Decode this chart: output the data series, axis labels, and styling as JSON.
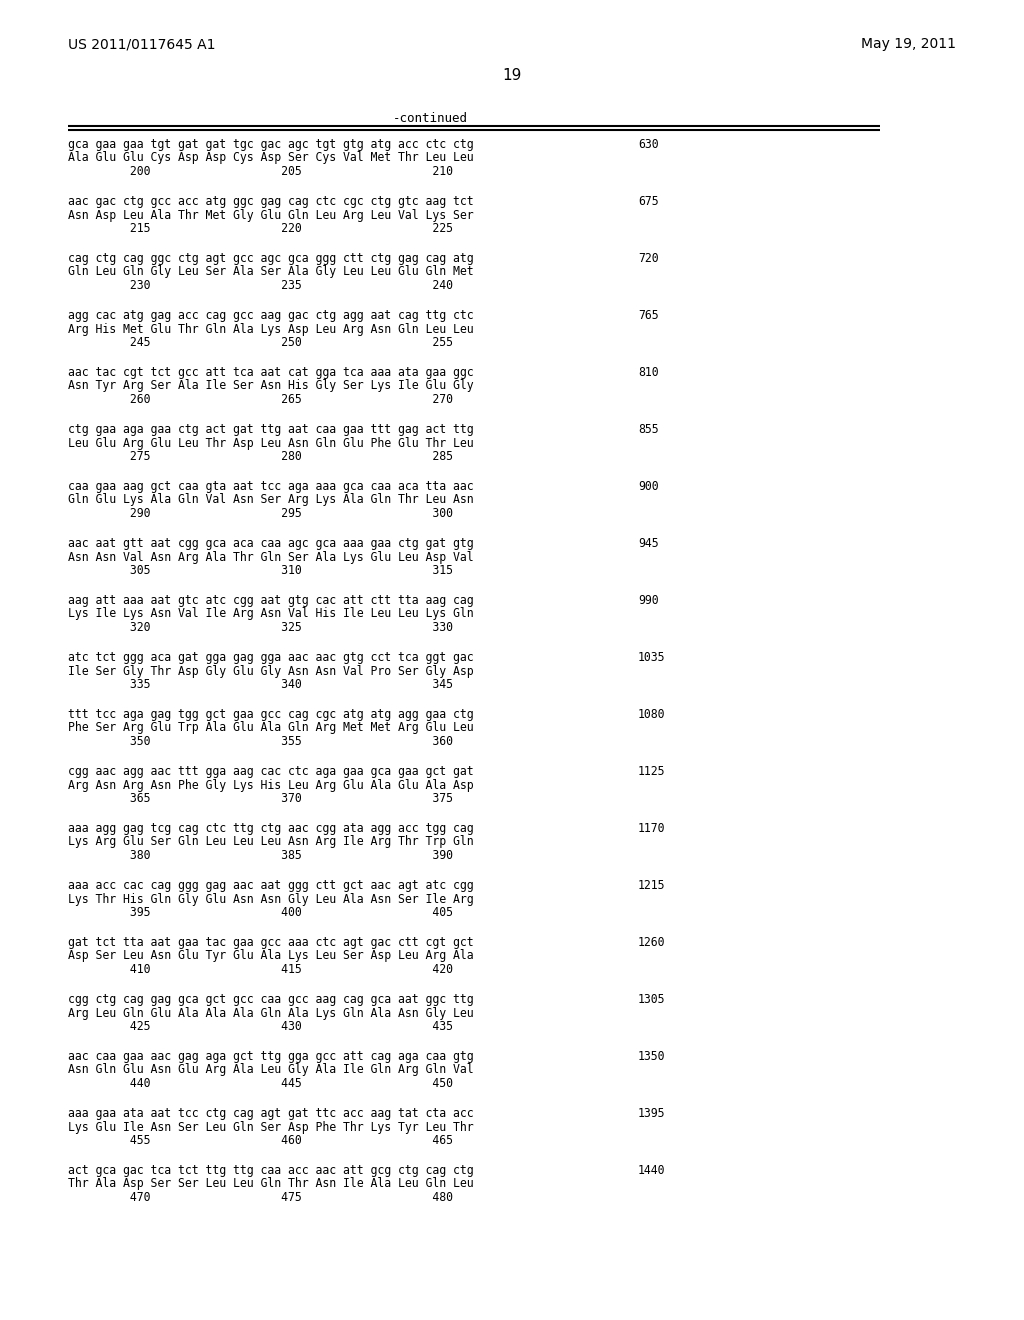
{
  "header_left": "US 2011/0117645 A1",
  "header_right": "May 19, 2011",
  "page_number": "19",
  "continued_label": "-continued",
  "background_color": "#ffffff",
  "text_color": "#000000",
  "sequences": [
    {
      "dna": "gca gaa gaa tgt gat gat tgc gac agc tgt gtg atg acc ctc ctg",
      "aa": "Ala Glu Glu Cys Asp Asp Cys Asp Ser Cys Val Met Thr Leu Leu",
      "nums": "         200                   205                   210",
      "num_right": "630"
    },
    {
      "dna": "aac gac ctg gcc acc atg ggc gag cag ctc cgc ctg gtc aag tct",
      "aa": "Asn Asp Leu Ala Thr Met Gly Glu Gln Leu Arg Leu Val Lys Ser",
      "nums": "         215                   220                   225",
      "num_right": "675"
    },
    {
      "dna": "cag ctg cag ggc ctg agt gcc agc gca ggg ctt ctg gag cag atg",
      "aa": "Gln Leu Gln Gly Leu Ser Ala Ser Ala Gly Leu Leu Glu Gln Met",
      "nums": "         230                   235                   240",
      "num_right": "720"
    },
    {
      "dna": "agg cac atg gag acc cag gcc aag gac ctg agg aat cag ttg ctc",
      "aa": "Arg His Met Glu Thr Gln Ala Lys Asp Leu Arg Asn Gln Leu Leu",
      "nums": "         245                   250                   255",
      "num_right": "765"
    },
    {
      "dna": "aac tac cgt tct gcc att tca aat cat gga tca aaa ata gaa ggc",
      "aa": "Asn Tyr Arg Ser Ala Ile Ser Asn His Gly Ser Lys Ile Glu Gly",
      "nums": "         260                   265                   270",
      "num_right": "810"
    },
    {
      "dna": "ctg gaa aga gaa ctg act gat ttg aat caa gaa ttt gag act ttg",
      "aa": "Leu Glu Arg Glu Leu Thr Asp Leu Asn Gln Glu Phe Glu Thr Leu",
      "nums": "         275                   280                   285",
      "num_right": "855"
    },
    {
      "dna": "caa gaa aag gct caa gta aat tcc aga aaa gca caa aca tta aac",
      "aa": "Gln Glu Lys Ala Gln Val Asn Ser Arg Lys Ala Gln Thr Leu Asn",
      "nums": "         290                   295                   300",
      "num_right": "900"
    },
    {
      "dna": "aac aat gtt aat cgg gca aca caa agc gca aaa gaa ctg gat gtg",
      "aa": "Asn Asn Val Asn Arg Ala Thr Gln Ser Ala Lys Glu Leu Asp Val",
      "nums": "         305                   310                   315",
      "num_right": "945"
    },
    {
      "dna": "aag att aaa aat gtc atc cgg aat gtg cac att ctt tta aag cag",
      "aa": "Lys Ile Lys Asn Val Ile Arg Asn Val His Ile Leu Leu Lys Gln",
      "nums": "         320                   325                   330",
      "num_right": "990"
    },
    {
      "dna": "atc tct ggg aca gat gga gag gga aac aac gtg cct tca ggt gac",
      "aa": "Ile Ser Gly Thr Asp Gly Glu Gly Asn Asn Val Pro Ser Gly Asp",
      "nums": "         335                   340                   345",
      "num_right": "1035"
    },
    {
      "dna": "ttt tcc aga gag tgg gct gaa gcc cag cgc atg atg agg gaa ctg",
      "aa": "Phe Ser Arg Glu Trp Ala Glu Ala Gln Arg Met Met Arg Glu Leu",
      "nums": "         350                   355                   360",
      "num_right": "1080"
    },
    {
      "dna": "cgg aac agg aac ttt gga aag cac ctc aga gaa gca gaa gct gat",
      "aa": "Arg Asn Arg Asn Phe Gly Lys His Leu Arg Glu Ala Glu Ala Asp",
      "nums": "         365                   370                   375",
      "num_right": "1125"
    },
    {
      "dna": "aaa agg gag tcg cag ctc ttg ctg aac cgg ata agg acc tgg cag",
      "aa": "Lys Arg Glu Ser Gln Leu Leu Leu Asn Arg Ile Arg Thr Trp Gln",
      "nums": "         380                   385                   390",
      "num_right": "1170"
    },
    {
      "dna": "aaa acc cac cag ggg gag aac aat ggg ctt gct aac agt atc cgg",
      "aa": "Lys Thr His Gln Gly Glu Asn Asn Gly Leu Ala Asn Ser Ile Arg",
      "nums": "         395                   400                   405",
      "num_right": "1215"
    },
    {
      "dna": "gat tct tta aat gaa tac gaa gcc aaa ctc agt gac ctt cgt gct",
      "aa": "Asp Ser Leu Asn Glu Tyr Glu Ala Lys Leu Ser Asp Leu Arg Ala",
      "nums": "         410                   415                   420",
      "num_right": "1260"
    },
    {
      "dna": "cgg ctg cag gag gca gct gcc caa gcc aag cag gca aat ggc ttg",
      "aa": "Arg Leu Gln Glu Ala Ala Ala Gln Ala Lys Gln Ala Asn Gly Leu",
      "nums": "         425                   430                   435",
      "num_right": "1305"
    },
    {
      "dna": "aac caa gaa aac gag aga gct ttg gga gcc att cag aga caa gtg",
      "aa": "Asn Gln Glu Asn Glu Arg Ala Leu Gly Ala Ile Gln Arg Gln Val",
      "nums": "         440                   445                   450",
      "num_right": "1350"
    },
    {
      "dna": "aaa gaa ata aat tcc ctg cag agt gat ttc acc aag tat cta acc",
      "aa": "Lys Glu Ile Asn Ser Leu Gln Ser Asp Phe Thr Lys Tyr Leu Thr",
      "nums": "         455                   460                   465",
      "num_right": "1395"
    },
    {
      "dna": "act gca gac tca tct ttg ttg caa acc aac att gcg ctg cag ctg",
      "aa": "Thr Ala Asp Ser Ser Leu Leu Gln Thr Asn Ile Ala Leu Gln Leu",
      "nums": "         470                   475                   480",
      "num_right": "1440"
    }
  ]
}
